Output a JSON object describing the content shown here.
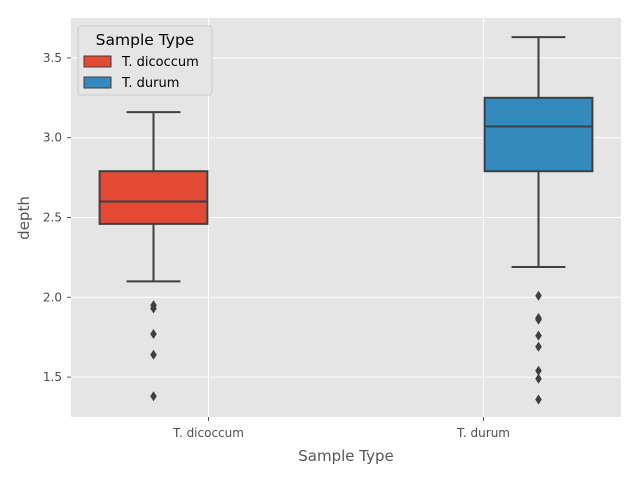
{
  "chart_data": {
    "type": "box",
    "xlabel": "Sample Type",
    "ylabel": "depth",
    "categories": [
      "T. dicoccum",
      "T. durum"
    ],
    "ylim": [
      1.25,
      3.75
    ],
    "yticks": [
      "1.5",
      "2.0",
      "2.5",
      "3.0",
      "3.5"
    ],
    "grid": true,
    "legend": {
      "title": "Sample Type",
      "placement": "top-left",
      "entries": [
        "T. dicoccum",
        "T. durum"
      ]
    },
    "series": [
      {
        "name": "T. dicoccum",
        "color": "#e24a33",
        "whisker_low": 2.1,
        "q1": 2.46,
        "median": 2.6,
        "q3": 2.79,
        "whisker_high": 3.16,
        "outliers": [
          1.95,
          1.93,
          1.77,
          1.64,
          1.38
        ]
      },
      {
        "name": "T. durum",
        "color": "#348abd",
        "whisker_low": 2.19,
        "q1": 2.79,
        "median": 3.07,
        "q3": 3.25,
        "whisker_high": 3.63,
        "outliers": [
          2.01,
          1.87,
          1.86,
          1.76,
          1.69,
          1.54,
          1.49,
          1.36
        ]
      }
    ]
  }
}
